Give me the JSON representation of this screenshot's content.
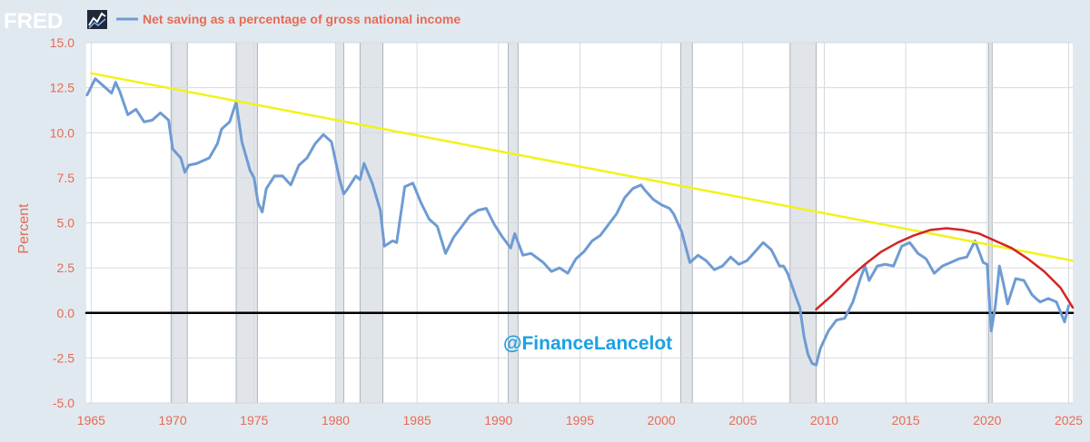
{
  "header": {
    "logo_text": "FRED",
    "logo_icon": "line-chart-icon",
    "legend_label": "Net saving as a percentage of gross national income"
  },
  "watermark": "@FinanceLancelot",
  "colors": {
    "background": "#e1e9f0",
    "plot_bg": "#ffffff",
    "series": "#6f9bd3",
    "tick_text": "#e86a52",
    "trend_line": "#f2f21a",
    "arc": "#d42323",
    "zero_line": "#000000",
    "recession": "#e1e5ea",
    "watermark": "#1ba1e2"
  },
  "chart_data": {
    "type": "line",
    "title": "Net saving as a percentage of gross national income",
    "xlabel": "",
    "ylabel": "Percent",
    "xlim": [
      1964.7,
      2025.25
    ],
    "ylim": [
      -5.0,
      15.0
    ],
    "grid": true,
    "legend_position": "top-left",
    "x_ticks": [
      "1965",
      "1970",
      "1975",
      "1980",
      "1985",
      "1990",
      "1995",
      "2000",
      "2005",
      "2010",
      "2015",
      "2020",
      "2025"
    ],
    "y_ticks": [
      "15.0",
      "12.5",
      "10.0",
      "7.5",
      "5.0",
      "2.5",
      "0.0",
      "-2.5",
      "-5.0"
    ],
    "recessions": [
      [
        1969.9,
        1970.9
      ],
      [
        1973.9,
        1975.2
      ],
      [
        1980.0,
        1980.5
      ],
      [
        1981.5,
        1982.9
      ],
      [
        1990.6,
        1991.2
      ],
      [
        2001.2,
        2001.9
      ],
      [
        2007.9,
        2009.5
      ],
      [
        2020.1,
        2020.3
      ]
    ],
    "series": [
      {
        "name": "Net saving as a percentage of gross national income",
        "x": [
          1964.75,
          1965.25,
          1965.75,
          1966.25,
          1966.5,
          1966.75,
          1967.25,
          1967.75,
          1968.25,
          1968.75,
          1969.25,
          1969.75,
          1970.0,
          1970.5,
          1970.75,
          1971.0,
          1971.5,
          1971.75,
          1972.25,
          1972.75,
          1973.0,
          1973.5,
          1973.9,
          1974.25,
          1974.75,
          1975.0,
          1975.25,
          1975.5,
          1975.75,
          1976.25,
          1976.75,
          1977.25,
          1977.75,
          1978.25,
          1978.75,
          1979.25,
          1979.75,
          1980.25,
          1980.5,
          1980.75,
          1981.25,
          1981.5,
          1981.75,
          1982.25,
          1982.75,
          1983.0,
          1983.5,
          1983.75,
          1984.25,
          1984.75,
          1985.25,
          1985.75,
          1986.25,
          1986.75,
          1987.25,
          1987.75,
          1988.25,
          1988.75,
          1989.25,
          1989.75,
          1990.25,
          1990.75,
          1991.0,
          1991.5,
          1992.0,
          1992.75,
          1993.25,
          1993.75,
          1994.25,
          1994.75,
          1995.25,
          1995.75,
          1996.25,
          1996.75,
          1997.25,
          1997.75,
          1998.25,
          1998.75,
          1999.0,
          1999.5,
          2000.0,
          2000.5,
          2000.75,
          2001.25,
          2001.75,
          2002.25,
          2002.75,
          2003.25,
          2003.75,
          2004.25,
          2004.75,
          2005.25,
          2005.75,
          2006.25,
          2006.75,
          2007.25,
          2007.5,
          2007.75,
          2008.25,
          2008.5,
          2008.75,
          2009.0,
          2009.25,
          2009.5,
          2009.75,
          2010.25,
          2010.75,
          2011.25,
          2011.75,
          2012.25,
          2012.5,
          2012.75,
          2013.25,
          2013.75,
          2014.25,
          2014.75,
          2015.25,
          2015.75,
          2016.25,
          2016.75,
          2017.25,
          2017.75,
          2018.25,
          2018.75,
          2019.25,
          2019.75,
          2020.0,
          2020.25,
          2020.5,
          2020.75,
          2021.0,
          2021.25,
          2021.75,
          2022.25,
          2022.75,
          2023.25,
          2023.75,
          2024.25,
          2024.75,
          2025.0
        ],
        "values": [
          12.1,
          13.0,
          12.6,
          12.2,
          12.8,
          12.3,
          11.0,
          11.3,
          10.6,
          10.7,
          11.1,
          10.7,
          9.1,
          8.6,
          7.8,
          8.2,
          8.3,
          8.4,
          8.6,
          9.4,
          10.2,
          10.6,
          11.7,
          9.5,
          7.9,
          7.5,
          6.1,
          5.6,
          6.9,
          7.6,
          7.6,
          7.1,
          8.2,
          8.6,
          9.4,
          9.9,
          9.5,
          7.4,
          6.6,
          6.9,
          7.6,
          7.4,
          8.3,
          7.2,
          5.7,
          3.7,
          4.0,
          3.9,
          7.0,
          7.2,
          6.1,
          5.2,
          4.8,
          3.3,
          4.2,
          4.8,
          5.4,
          5.7,
          5.8,
          4.9,
          4.2,
          3.6,
          4.4,
          3.2,
          3.3,
          2.8,
          2.3,
          2.5,
          2.2,
          3.0,
          3.4,
          4.0,
          4.3,
          4.9,
          5.5,
          6.4,
          6.9,
          7.1,
          6.8,
          6.3,
          6.0,
          5.8,
          5.5,
          4.5,
          2.8,
          3.2,
          2.9,
          2.4,
          2.6,
          3.1,
          2.7,
          2.9,
          3.4,
          3.9,
          3.5,
          2.6,
          2.6,
          2.2,
          0.9,
          0.3,
          -1.3,
          -2.3,
          -2.8,
          -2.9,
          -2.0,
          -1.0,
          -0.4,
          -0.3,
          0.6,
          2.0,
          2.6,
          1.8,
          2.6,
          2.7,
          2.6,
          3.7,
          3.9,
          3.3,
          3.0,
          2.2,
          2.6,
          2.8,
          3.0,
          3.1,
          4.0,
          2.8,
          2.7,
          -1.0,
          0.4,
          2.6,
          1.6,
          0.5,
          1.9,
          1.8,
          1.0,
          0.6,
          0.8,
          0.6,
          -0.5,
          0.4
        ]
      },
      {
        "name": "",
        "x": [
          1965.0,
          2025.25
        ],
        "values": [
          13.3,
          2.9
        ]
      },
      {
        "name": "",
        "x": [
          2009.5,
          2010.5,
          2011.5,
          2012.5,
          2013.5,
          2014.5,
          2015.5,
          2016.5,
          2017.5,
          2018.5,
          2019.5,
          2020.5,
          2021.5,
          2022.5,
          2023.5,
          2024.5,
          2025.25
        ],
        "values": [
          0.2,
          1.0,
          1.9,
          2.7,
          3.4,
          3.9,
          4.3,
          4.6,
          4.7,
          4.6,
          4.4,
          4.0,
          3.6,
          3.0,
          2.3,
          1.4,
          0.3
        ]
      },
      {
        "name": "",
        "x": [
          1964.7,
          2025.25
        ],
        "values": [
          0.0,
          0.0
        ]
      }
    ]
  }
}
